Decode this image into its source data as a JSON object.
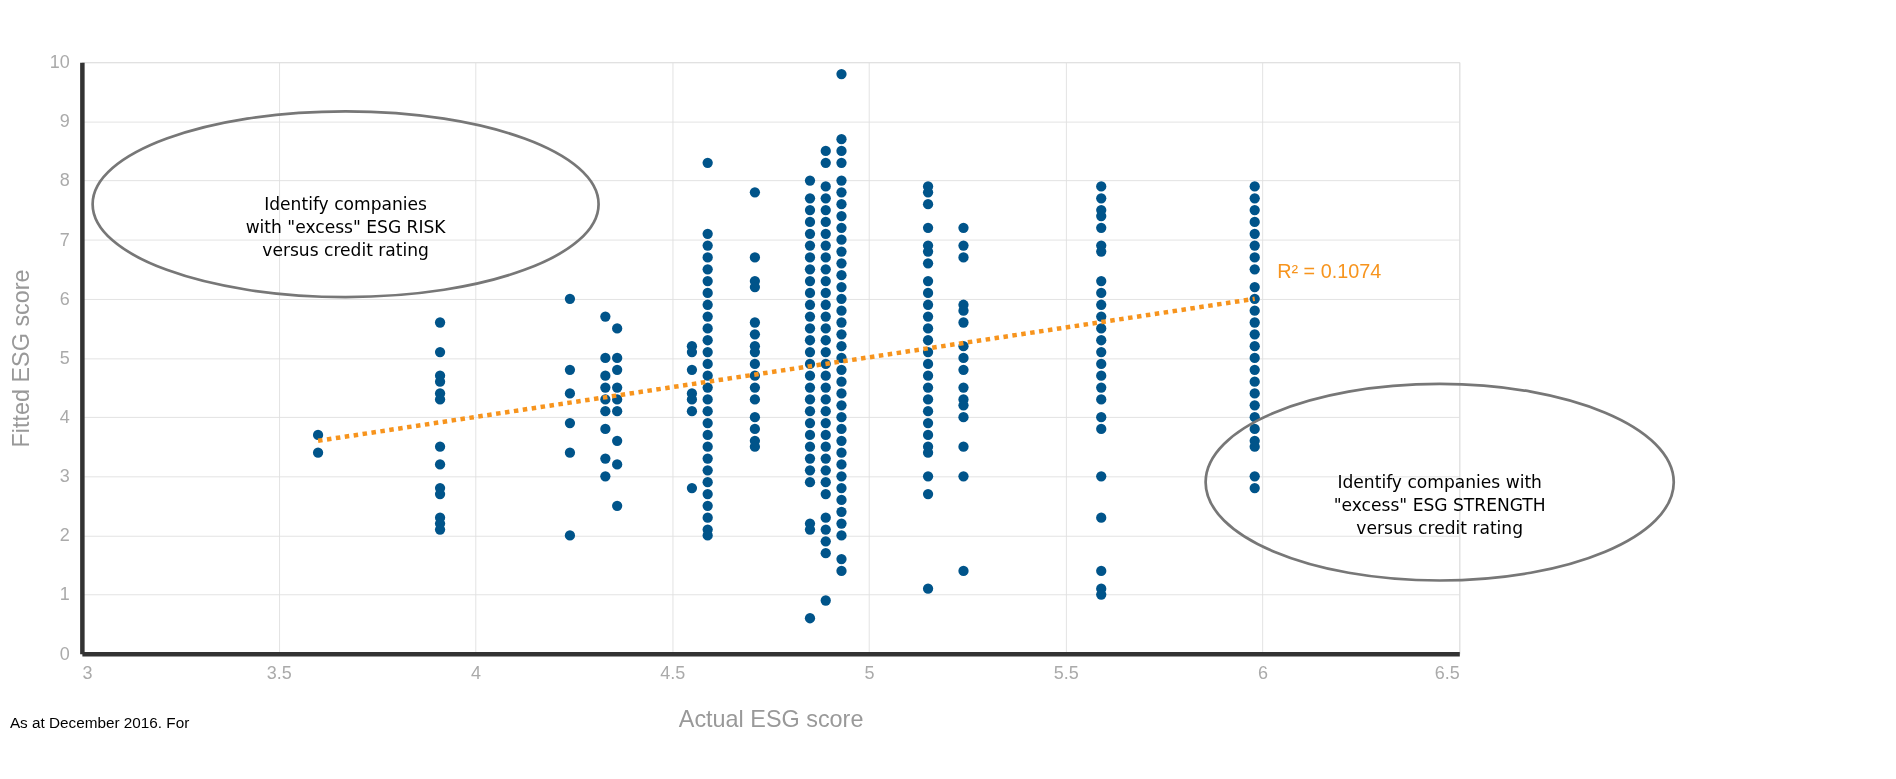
{
  "chart_data": {
    "type": "scatter",
    "xlabel": "Actual ESG score",
    "ylabel": "Fitted ESG score",
    "xlim": [
      3,
      6.5
    ],
    "xticks": [
      3,
      3.5,
      4,
      4.5,
      5,
      5.5,
      6,
      6.5
    ],
    "ylim": [
      0,
      10
    ],
    "yticks": [
      0,
      1,
      2,
      3,
      4,
      5,
      6,
      7,
      8,
      9,
      10
    ],
    "grid": true,
    "annotations": [
      "Identify companies\nwith \"excess\" ESG RISK\nversus credit rating",
      "Identify companies with\n\"excess\" ESG STRENGTH\nversus credit rating",
      "R² = 0.1074",
      "As at December 2016. For"
    ],
    "series": [
      {
        "color": "#00548a",
        "x": [
          3.6,
          3.6
        ],
        "values": [
          3.7,
          3.4
        ]
      },
      {
        "color": "#00548a",
        "x": [
          3.91,
          3.91,
          3.91,
          3.91,
          3.91,
          3.91,
          3.91,
          3.91,
          3.91,
          3.91,
          3.91,
          3.91,
          3.91
        ],
        "values": [
          5.6,
          5.1,
          4.7,
          4.6,
          4.4,
          4.3,
          3.5,
          3.2,
          2.8,
          2.7,
          2.3,
          2.2,
          2.1
        ]
      },
      {
        "color": "#00548a",
        "x": [
          4.24,
          4.24,
          4.24,
          4.24,
          4.24,
          4.24
        ],
        "values": [
          6.0,
          4.8,
          4.4,
          3.9,
          3.4,
          2.0
        ]
      },
      {
        "color": "#00548a",
        "x": [
          4.33,
          4.33,
          4.33,
          4.33,
          4.33,
          4.33,
          4.33,
          4.33,
          4.33
        ],
        "values": [
          5.7,
          5.0,
          4.7,
          4.5,
          4.3,
          4.1,
          3.8,
          3.3,
          3.0
        ]
      },
      {
        "color": "#00548a",
        "x": [
          4.36,
          4.36,
          4.36,
          4.36,
          4.36,
          4.36,
          4.36,
          4.36,
          4.36
        ],
        "values": [
          5.5,
          5.0,
          4.8,
          4.5,
          4.3,
          4.1,
          3.6,
          3.2,
          2.5
        ]
      },
      {
        "color": "#00548a",
        "x": [
          4.55,
          4.55,
          4.55,
          4.55,
          4.55,
          4.55,
          4.55
        ],
        "values": [
          5.2,
          5.1,
          4.8,
          4.4,
          4.3,
          4.1,
          2.8
        ]
      },
      {
        "color": "#00548a",
        "x": [
          4.59,
          4.59,
          4.59,
          4.59,
          4.59,
          4.59,
          4.59,
          4.59,
          4.59,
          4.59,
          4.59,
          4.59,
          4.59,
          4.59,
          4.59,
          4.59,
          4.59,
          4.59,
          4.59,
          4.59,
          4.59,
          4.59,
          4.59,
          4.59,
          4.59,
          4.59,
          4.59,
          4.59
        ],
        "values": [
          8.3,
          7.1,
          6.9,
          6.7,
          6.5,
          6.3,
          6.1,
          5.9,
          5.7,
          5.5,
          5.3,
          5.1,
          4.9,
          4.7,
          4.5,
          4.3,
          4.1,
          3.9,
          3.7,
          3.5,
          3.3,
          3.1,
          2.9,
          2.7,
          2.5,
          2.3,
          2.1,
          2.0
        ]
      },
      {
        "color": "#00548a",
        "x": [
          4.71,
          4.71,
          4.71,
          4.71,
          4.71,
          4.71,
          4.71,
          4.71,
          4.71,
          4.71,
          4.71,
          4.71,
          4.71,
          4.71,
          4.71,
          4.71
        ],
        "values": [
          7.8,
          6.7,
          6.3,
          6.2,
          5.6,
          5.4,
          5.2,
          5.1,
          4.9,
          4.7,
          4.5,
          4.3,
          4.0,
          3.8,
          3.6,
          3.5
        ]
      },
      {
        "color": "#00548a",
        "x": [
          4.85,
          4.85,
          4.85,
          4.85,
          4.85,
          4.85,
          4.85,
          4.85,
          4.85,
          4.85,
          4.85,
          4.85,
          4.85,
          4.85,
          4.85,
          4.85,
          4.85,
          4.85,
          4.85,
          4.85,
          4.85,
          4.85,
          4.85,
          4.85,
          4.85,
          4.85,
          4.85,
          4.85,
          4.85
        ],
        "values": [
          8.0,
          7.7,
          7.5,
          7.3,
          7.1,
          6.9,
          6.7,
          6.5,
          6.3,
          6.1,
          5.9,
          5.7,
          5.5,
          5.3,
          5.1,
          4.9,
          4.7,
          4.5,
          4.3,
          4.1,
          3.9,
          3.7,
          3.5,
          3.3,
          3.1,
          2.9,
          2.2,
          2.1,
          0.6
        ]
      },
      {
        "color": "#00548a",
        "x": [
          4.89,
          4.89,
          4.89,
          4.89,
          4.89,
          4.89,
          4.89,
          4.89,
          4.89,
          4.89,
          4.89,
          4.89,
          4.89,
          4.89,
          4.89,
          4.89,
          4.89,
          4.89,
          4.89,
          4.89,
          4.89,
          4.89,
          4.89,
          4.89,
          4.89,
          4.89,
          4.89,
          4.89,
          4.89,
          4.89,
          4.89,
          4.89,
          4.89,
          4.89
        ],
        "values": [
          8.5,
          8.3,
          7.9,
          7.7,
          7.5,
          7.3,
          7.1,
          6.9,
          6.7,
          6.5,
          6.3,
          6.1,
          5.9,
          5.7,
          5.5,
          5.3,
          5.1,
          4.9,
          4.7,
          4.5,
          4.3,
          4.1,
          3.9,
          3.7,
          3.5,
          3.3,
          3.1,
          2.9,
          2.7,
          2.3,
          2.1,
          1.9,
          1.7,
          0.9
        ]
      },
      {
        "color": "#00548a",
        "x": [
          4.93,
          4.93,
          4.93,
          4.93,
          4.93,
          4.93,
          4.93,
          4.93,
          4.93,
          4.93,
          4.93,
          4.93,
          4.93,
          4.93,
          4.93,
          4.93,
          4.93,
          4.93,
          4.93,
          4.93,
          4.93,
          4.93,
          4.93,
          4.93,
          4.93,
          4.93,
          4.93,
          4.93,
          4.93,
          4.93,
          4.93,
          4.93,
          4.93,
          4.93,
          4.93,
          4.93,
          4.93
        ],
        "values": [
          9.8,
          8.7,
          8.5,
          8.3,
          8.0,
          7.8,
          7.6,
          7.4,
          7.2,
          7.0,
          6.8,
          6.6,
          6.4,
          6.2,
          6.0,
          5.8,
          5.6,
          5.4,
          5.2,
          5.0,
          4.8,
          4.6,
          4.4,
          4.2,
          4.0,
          3.8,
          3.6,
          3.4,
          3.2,
          3.0,
          2.8,
          2.6,
          2.4,
          2.2,
          2.0,
          1.6,
          1.4
        ]
      },
      {
        "color": "#00548a",
        "x": [
          5.15,
          5.15,
          5.15,
          5.15,
          5.15,
          5.15,
          5.15,
          5.15,
          5.15,
          5.15,
          5.15,
          5.15,
          5.15,
          5.15,
          5.15,
          5.15,
          5.15,
          5.15,
          5.15,
          5.15,
          5.15,
          5.15,
          5.15,
          5.15,
          5.15,
          5.15
        ],
        "values": [
          7.9,
          7.8,
          7.6,
          7.2,
          6.9,
          6.8,
          6.6,
          6.3,
          6.1,
          5.9,
          5.7,
          5.5,
          5.3,
          5.1,
          4.9,
          4.7,
          4.5,
          4.3,
          4.1,
          3.9,
          3.7,
          3.5,
          3.4,
          3.0,
          2.7,
          1.1
        ]
      },
      {
        "color": "#00548a",
        "x": [
          5.24,
          5.24,
          5.24,
          5.24,
          5.24,
          5.24,
          5.24,
          5.24,
          5.24,
          5.24,
          5.24,
          5.24,
          5.24,
          5.24,
          5.24,
          5.24
        ],
        "values": [
          7.2,
          6.9,
          6.7,
          5.9,
          5.8,
          5.6,
          5.2,
          5.0,
          4.8,
          4.5,
          4.3,
          4.2,
          4.0,
          3.5,
          3.0,
          1.4
        ]
      },
      {
        "color": "#00548a",
        "x": [
          5.59,
          5.59,
          5.59,
          5.59,
          5.59,
          5.59,
          5.59,
          5.59,
          5.59,
          5.59,
          5.59,
          5.59,
          5.59,
          5.59,
          5.59,
          5.59,
          5.59,
          5.59,
          5.59,
          5.59,
          5.59,
          5.59,
          5.59,
          5.59,
          5.59
        ],
        "values": [
          7.9,
          7.7,
          7.5,
          7.4,
          7.2,
          6.9,
          6.8,
          6.3,
          6.1,
          5.9,
          5.7,
          5.5,
          5.3,
          5.1,
          4.9,
          4.7,
          4.5,
          4.3,
          4.0,
          3.8,
          3.0,
          2.3,
          1.4,
          1.1,
          1.0
        ]
      },
      {
        "color": "#00548a",
        "x": [
          5.98,
          5.98,
          5.98,
          5.98,
          5.98,
          5.98,
          5.98,
          5.98,
          5.98,
          5.98,
          5.98,
          5.98,
          5.98,
          5.98,
          5.98,
          5.98,
          5.98,
          5.98,
          5.98,
          5.98,
          5.98,
          5.98,
          5.98,
          5.98,
          5.98
        ],
        "values": [
          7.9,
          7.7,
          7.5,
          7.3,
          7.1,
          6.9,
          6.7,
          6.5,
          6.2,
          6.0,
          5.8,
          5.6,
          5.4,
          5.2,
          5.0,
          4.8,
          4.6,
          4.4,
          4.2,
          4.0,
          3.8,
          3.6,
          3.5,
          3.0,
          2.8
        ]
      },
      {
        "type": "line",
        "color": "#f7941d",
        "line_style": "dotted",
        "x": [
          3.6,
          5.98
        ],
        "values": [
          3.6,
          6.0
        ]
      }
    ]
  }
}
